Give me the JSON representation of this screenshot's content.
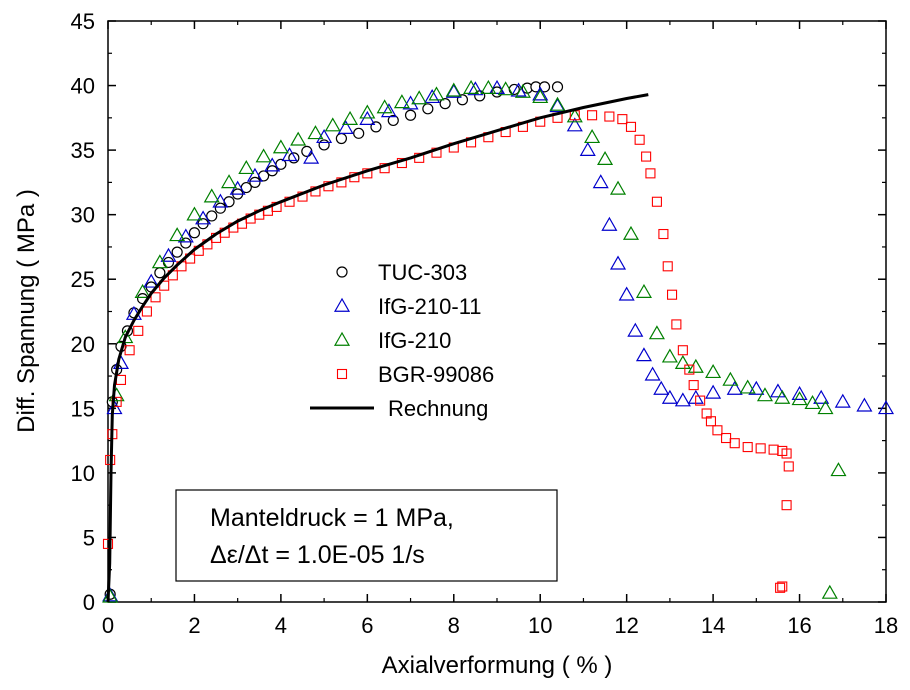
{
  "chart_data": {
    "type": "scatter",
    "xlabel": "Axialverformung  ( % )",
    "ylabel": "Diff. Spannung ( MPa )",
    "xlim": [
      0,
      18
    ],
    "ylim": [
      0,
      45
    ],
    "xticks": [
      "0",
      "2",
      "4",
      "6",
      "8",
      "10",
      "12",
      "14",
      "16",
      "18"
    ],
    "yticks": [
      "0",
      "5",
      "10",
      "15",
      "20",
      "25",
      "30",
      "35",
      "40",
      "45"
    ],
    "grid": false,
    "legend_position": "center-left",
    "series": [
      {
        "name": "TUC-303",
        "marker": "circle",
        "color": "#000000",
        "points": [
          [
            0.05,
            0.6
          ],
          [
            0.1,
            15.5
          ],
          [
            0.2,
            18.0
          ],
          [
            0.3,
            19.8
          ],
          [
            0.45,
            21.0
          ],
          [
            0.6,
            22.4
          ],
          [
            0.8,
            23.5
          ],
          [
            1.0,
            24.4
          ],
          [
            1.2,
            25.5
          ],
          [
            1.4,
            26.3
          ],
          [
            1.6,
            27.1
          ],
          [
            1.8,
            27.8
          ],
          [
            2.0,
            28.6
          ],
          [
            2.2,
            29.3
          ],
          [
            2.4,
            29.9
          ],
          [
            2.6,
            30.5
          ],
          [
            2.8,
            31.0
          ],
          [
            3.0,
            31.6
          ],
          [
            3.2,
            32.1
          ],
          [
            3.4,
            32.5
          ],
          [
            3.6,
            33.0
          ],
          [
            3.8,
            33.4
          ],
          [
            4.0,
            33.9
          ],
          [
            4.3,
            34.4
          ],
          [
            4.6,
            34.9
          ],
          [
            5.0,
            35.4
          ],
          [
            5.4,
            35.9
          ],
          [
            5.8,
            36.3
          ],
          [
            6.2,
            36.8
          ],
          [
            6.6,
            37.3
          ],
          [
            7.0,
            37.7
          ],
          [
            7.4,
            38.2
          ],
          [
            7.8,
            38.6
          ],
          [
            8.2,
            38.9
          ],
          [
            8.6,
            39.2
          ],
          [
            9.0,
            39.5
          ],
          [
            9.4,
            39.7
          ],
          [
            9.7,
            39.8
          ],
          [
            9.9,
            39.9
          ],
          [
            10.1,
            39.9
          ],
          [
            10.4,
            39.9
          ]
        ]
      },
      {
        "name": "IfG-210-11",
        "marker": "triangle",
        "color": "#0000cc",
        "points": [
          [
            0.05,
            0.5
          ],
          [
            0.15,
            15.0
          ],
          [
            0.3,
            18.5
          ],
          [
            0.6,
            22.3
          ],
          [
            1.0,
            24.8
          ],
          [
            1.4,
            26.8
          ],
          [
            1.8,
            28.3
          ],
          [
            2.2,
            29.7
          ],
          [
            2.6,
            31.0
          ],
          [
            3.0,
            32.0
          ],
          [
            3.4,
            33.0
          ],
          [
            3.8,
            33.8
          ],
          [
            4.2,
            34.6
          ],
          [
            4.7,
            34.4
          ],
          [
            5.0,
            36.0
          ],
          [
            5.5,
            36.7
          ],
          [
            6.0,
            37.4
          ],
          [
            6.5,
            38.0
          ],
          [
            7.0,
            38.6
          ],
          [
            7.5,
            39.1
          ],
          [
            8.0,
            39.5
          ],
          [
            8.5,
            39.7
          ],
          [
            9.0,
            39.8
          ],
          [
            9.5,
            39.6
          ],
          [
            10.0,
            39.3
          ],
          [
            10.4,
            38.4
          ],
          [
            10.8,
            36.9
          ],
          [
            11.1,
            35.0
          ],
          [
            11.4,
            32.5
          ],
          [
            11.6,
            29.2
          ],
          [
            11.8,
            26.2
          ],
          [
            12.0,
            23.8
          ],
          [
            12.2,
            21.0
          ],
          [
            12.4,
            19.1
          ],
          [
            12.6,
            17.6
          ],
          [
            12.8,
            16.5
          ],
          [
            13.0,
            15.8
          ],
          [
            13.3,
            15.6
          ],
          [
            13.6,
            15.8
          ],
          [
            14.0,
            16.2
          ],
          [
            14.5,
            16.5
          ],
          [
            15.0,
            16.5
          ],
          [
            15.5,
            16.3
          ],
          [
            16.0,
            16.1
          ],
          [
            16.5,
            15.8
          ],
          [
            17.0,
            15.5
          ],
          [
            17.5,
            15.2
          ],
          [
            18.0,
            15.0
          ]
        ]
      },
      {
        "name": "IfG-210",
        "marker": "triangle",
        "color": "#008000",
        "points": [
          [
            0.05,
            0.4
          ],
          [
            0.2,
            16.0
          ],
          [
            0.4,
            20.5
          ],
          [
            0.8,
            24.0
          ],
          [
            1.2,
            26.3
          ],
          [
            1.6,
            28.4
          ],
          [
            2.0,
            30.0
          ],
          [
            2.4,
            31.4
          ],
          [
            2.8,
            32.5
          ],
          [
            3.2,
            33.6
          ],
          [
            3.6,
            34.5
          ],
          [
            4.0,
            35.2
          ],
          [
            4.4,
            35.8
          ],
          [
            4.8,
            36.3
          ],
          [
            5.2,
            36.9
          ],
          [
            5.6,
            37.4
          ],
          [
            6.0,
            37.9
          ],
          [
            6.4,
            38.3
          ],
          [
            6.8,
            38.7
          ],
          [
            7.2,
            39.0
          ],
          [
            7.6,
            39.3
          ],
          [
            8.0,
            39.6
          ],
          [
            8.4,
            39.8
          ],
          [
            8.8,
            39.8
          ],
          [
            9.2,
            39.7
          ],
          [
            9.6,
            39.5
          ],
          [
            10.0,
            39.1
          ],
          [
            10.4,
            38.5
          ],
          [
            10.8,
            37.6
          ],
          [
            11.2,
            36.0
          ],
          [
            11.5,
            34.3
          ],
          [
            11.8,
            32.0
          ],
          [
            12.1,
            28.5
          ],
          [
            12.4,
            24.0
          ],
          [
            12.7,
            20.8
          ],
          [
            13.0,
            19.0
          ],
          [
            13.3,
            18.5
          ],
          [
            13.6,
            18.2
          ],
          [
            14.0,
            17.8
          ],
          [
            14.4,
            17.2
          ],
          [
            14.8,
            16.6
          ],
          [
            15.2,
            16.0
          ],
          [
            15.6,
            15.8
          ],
          [
            16.0,
            15.7
          ],
          [
            16.3,
            15.4
          ],
          [
            16.6,
            15.0
          ],
          [
            16.9,
            10.2
          ],
          [
            16.7,
            0.7
          ]
        ]
      },
      {
        "name": "BGR-99086",
        "marker": "square",
        "color": "#ff0000",
        "points": [
          [
            0.0,
            4.5
          ],
          [
            0.05,
            11.0
          ],
          [
            0.1,
            13.0
          ],
          [
            0.2,
            15.5
          ],
          [
            0.3,
            17.2
          ],
          [
            0.5,
            19.5
          ],
          [
            0.7,
            21.0
          ],
          [
            0.9,
            22.5
          ],
          [
            1.1,
            23.6
          ],
          [
            1.3,
            24.5
          ],
          [
            1.5,
            25.3
          ],
          [
            1.7,
            26.0
          ],
          [
            1.9,
            26.6
          ],
          [
            2.1,
            27.2
          ],
          [
            2.3,
            27.7
          ],
          [
            2.5,
            28.2
          ],
          [
            2.7,
            28.6
          ],
          [
            2.9,
            29.0
          ],
          [
            3.1,
            29.3
          ],
          [
            3.3,
            29.7
          ],
          [
            3.5,
            30.0
          ],
          [
            3.7,
            30.3
          ],
          [
            3.9,
            30.6
          ],
          [
            4.2,
            31.0
          ],
          [
            4.5,
            31.4
          ],
          [
            4.8,
            31.8
          ],
          [
            5.1,
            32.2
          ],
          [
            5.4,
            32.5
          ],
          [
            5.7,
            32.9
          ],
          [
            6.0,
            33.2
          ],
          [
            6.4,
            33.6
          ],
          [
            6.8,
            34.0
          ],
          [
            7.2,
            34.4
          ],
          [
            7.6,
            34.8
          ],
          [
            8.0,
            35.2
          ],
          [
            8.4,
            35.6
          ],
          [
            8.8,
            36.0
          ],
          [
            9.2,
            36.4
          ],
          [
            9.6,
            36.8
          ],
          [
            10.0,
            37.2
          ],
          [
            10.4,
            37.5
          ],
          [
            10.8,
            37.7
          ],
          [
            11.2,
            37.7
          ],
          [
            11.6,
            37.6
          ],
          [
            11.9,
            37.4
          ],
          [
            12.1,
            36.8
          ],
          [
            12.3,
            35.8
          ],
          [
            12.45,
            34.5
          ],
          [
            12.55,
            33.2
          ],
          [
            12.7,
            31.0
          ],
          [
            12.85,
            28.5
          ],
          [
            12.95,
            26.0
          ],
          [
            13.05,
            23.8
          ],
          [
            13.15,
            21.5
          ],
          [
            13.3,
            19.5
          ],
          [
            13.45,
            18.0
          ],
          [
            13.55,
            16.8
          ],
          [
            13.7,
            15.6
          ],
          [
            13.85,
            14.6
          ],
          [
            13.95,
            14.0
          ],
          [
            14.1,
            13.3
          ],
          [
            14.3,
            12.7
          ],
          [
            14.5,
            12.3
          ],
          [
            14.8,
            12.0
          ],
          [
            15.1,
            11.9
          ],
          [
            15.4,
            11.8
          ],
          [
            15.6,
            11.7
          ],
          [
            15.7,
            11.5
          ],
          [
            15.75,
            10.5
          ],
          [
            15.7,
            7.5
          ],
          [
            15.6,
            1.2
          ],
          [
            15.55,
            1.1
          ]
        ]
      },
      {
        "name": "Rechnung",
        "marker": "line",
        "color": "#000000",
        "points": [
          [
            0.0,
            0.0
          ],
          [
            0.04,
            3.0
          ],
          [
            0.07,
            10.0
          ],
          [
            0.1,
            14.5
          ],
          [
            0.15,
            16.8
          ],
          [
            0.25,
            18.8
          ],
          [
            0.4,
            20.5
          ],
          [
            0.6,
            21.8
          ],
          [
            0.8,
            22.9
          ],
          [
            1.0,
            23.9
          ],
          [
            1.3,
            25.1
          ],
          [
            1.6,
            26.1
          ],
          [
            2.0,
            27.3
          ],
          [
            2.5,
            28.5
          ],
          [
            3.0,
            29.5
          ],
          [
            3.5,
            30.3
          ],
          [
            4.0,
            31.0
          ],
          [
            5.0,
            32.3
          ],
          [
            6.0,
            33.4
          ],
          [
            7.0,
            34.4
          ],
          [
            8.0,
            35.5
          ],
          [
            9.0,
            36.5
          ],
          [
            10.0,
            37.5
          ],
          [
            11.0,
            38.3
          ],
          [
            12.0,
            39.0
          ],
          [
            12.5,
            39.3
          ]
        ]
      }
    ],
    "annotation": {
      "line1": "Manteldruck = 1 MPa,",
      "line2": "Δε/Δt = 1.0E-05 1/s"
    }
  }
}
